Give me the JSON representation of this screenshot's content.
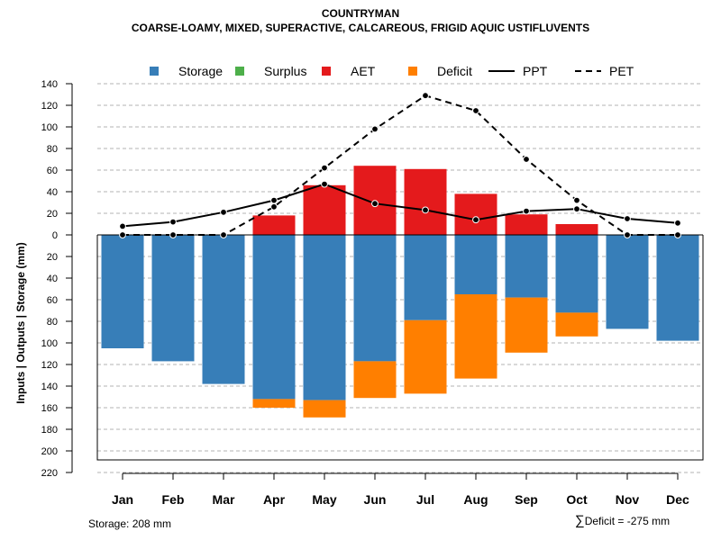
{
  "title": "COUNTRYMAN",
  "subtitle": "COARSE-LOAMY, MIXED, SUPERACTIVE, CALCAREOUS, FRIGID AQUIC USTIFLUVENTS",
  "colors": {
    "storage": "#377eb8",
    "surplus": "#4daf4a",
    "aet": "#e41a1c",
    "deficit": "#ff7f00",
    "line": "#000000"
  },
  "footer": {
    "storage": "Storage: 208 mm",
    "deficit_symbol": "∑",
    "deficit": "Deficit = -275 mm"
  },
  "chart_data": {
    "type": "bar",
    "title": "COUNTRYMAN",
    "ylabel": "Inputs | Outputs | Storage     (mm)",
    "xlabel": "",
    "ylim": [
      -220,
      140
    ],
    "grid": true,
    "legend_position": "top",
    "categories": [
      "Jan",
      "Feb",
      "Mar",
      "Apr",
      "May",
      "Jun",
      "Jul",
      "Aug",
      "Sep",
      "Oct",
      "Nov",
      "Dec"
    ],
    "y_ticks": [
      140,
      120,
      100,
      80,
      60,
      40,
      20,
      0,
      -20,
      -40,
      -60,
      -80,
      -100,
      -120,
      -140,
      -160,
      -180,
      -200,
      -220
    ],
    "y_tick_labels": [
      "140",
      "120",
      "100",
      "80",
      "60",
      "40",
      "20",
      "0",
      "20",
      "40",
      "60",
      "80",
      "100",
      "120",
      "140",
      "160",
      "180",
      "200",
      "220"
    ],
    "legend": [
      {
        "name": "Storage",
        "kind": "box",
        "color": "#377eb8"
      },
      {
        "name": "Surplus",
        "kind": "box",
        "color": "#4daf4a"
      },
      {
        "name": "AET",
        "kind": "box",
        "color": "#e41a1c"
      },
      {
        "name": "Deficit",
        "kind": "box",
        "color": "#ff7f00"
      },
      {
        "name": "PPT",
        "kind": "solid",
        "color": "#000000"
      },
      {
        "name": "PET",
        "kind": "dashed",
        "color": "#000000"
      }
    ],
    "series": [
      {
        "name": "Storage",
        "kind": "bar_down",
        "values": [
          105,
          117,
          138,
          152,
          153,
          117,
          79,
          55,
          58,
          72,
          87,
          98
        ]
      },
      {
        "name": "Deficit",
        "kind": "bar_down_stacked",
        "values": [
          0,
          0,
          0,
          8,
          16,
          34,
          68,
          78,
          51,
          22,
          0,
          0
        ]
      },
      {
        "name": "Surplus",
        "kind": "bar_up",
        "values": [
          0,
          0,
          0,
          0,
          0,
          0,
          0,
          0,
          0,
          0,
          0,
          0
        ]
      },
      {
        "name": "AET",
        "kind": "bar_up",
        "values": [
          0,
          0,
          0,
          18,
          46,
          64,
          61,
          38,
          19,
          10,
          0,
          0
        ]
      },
      {
        "name": "PPT",
        "kind": "line_solid",
        "values": [
          8,
          12,
          21,
          32,
          47,
          29,
          23,
          14,
          22,
          24,
          15,
          11
        ]
      },
      {
        "name": "PET",
        "kind": "line_dashed",
        "values": [
          0,
          0,
          0,
          26,
          62,
          98,
          129,
          115,
          70,
          32,
          0,
          0
        ]
      }
    ]
  }
}
